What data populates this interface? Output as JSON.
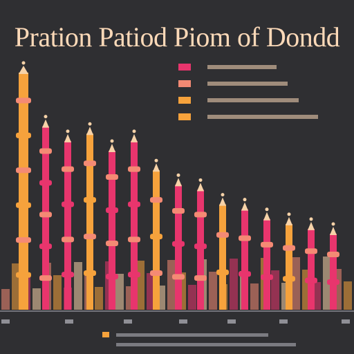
{
  "title": "Pration Patiod Piom of Dondd",
  "colors": {
    "background": "#2f2f32",
    "title": "#fcd9b8",
    "pink": "#e8356d",
    "orange": "#f6a23c",
    "salmon": "#f48a74",
    "cream": "#f6d2a8"
  },
  "chart_data": {
    "type": "bar",
    "title": "Pration Patiod Piom of Dondd",
    "legend_position": "top-right",
    "legend": [
      {
        "color": "#e8356d"
      },
      {
        "color": "#f48a74"
      },
      {
        "color": "#f6a23c"
      },
      {
        "color": "#f6a23c"
      }
    ],
    "ylim": [
      0,
      100
    ],
    "series": [
      {
        "values": [
          100,
          78,
          72,
          75,
          68,
          72,
          60,
          54,
          52,
          46,
          44,
          40,
          38,
          36,
          34
        ]
      }
    ]
  }
}
